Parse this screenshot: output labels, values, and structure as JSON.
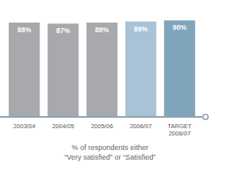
{
  "chart_data": {
    "type": "bar",
    "categories": [
      "2003/04",
      "2004/05",
      "2005/06",
      "2006/07",
      "TARGET\n2006/07"
    ],
    "values": [
      88,
      87,
      88,
      89,
      90
    ],
    "value_labels": [
      "88%",
      "87%",
      "88%",
      "89%",
      "90%"
    ],
    "colors": [
      "#a7a9ac",
      "#a7a9ac",
      "#a7a9ac",
      "#a9c2d5",
      "#7fa5bc"
    ],
    "xlabel": "% of respondents either\n“Very satisfied” or “Satisfied”",
    "ylim": [
      0,
      100
    ],
    "data_labels": true,
    "tick_labels": "x",
    "grid": false
  }
}
